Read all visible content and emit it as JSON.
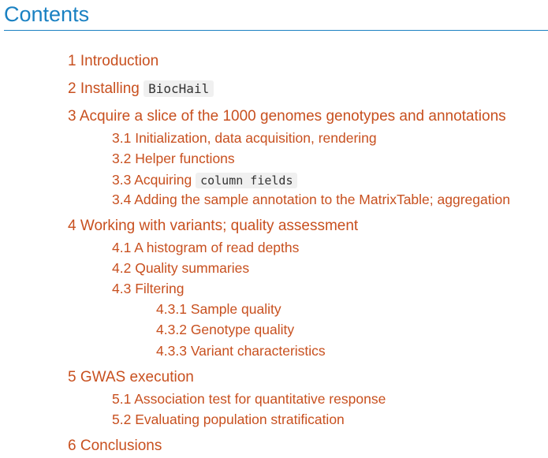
{
  "toc": {
    "title": "Contents",
    "sections": [
      {
        "num": "1",
        "label": "Introduction"
      },
      {
        "num": "2",
        "label": "Installing",
        "code": "BiocHail"
      },
      {
        "num": "3",
        "label": "Acquire a slice of the 1000 genomes genotypes and annotations",
        "children": [
          {
            "num": "3.1",
            "label": "Initialization, data acquisition, rendering"
          },
          {
            "num": "3.2",
            "label": "Helper functions"
          },
          {
            "num": "3.3",
            "label": "Acquiring",
            "code": "column fields"
          },
          {
            "num": "3.4",
            "label": "Adding the sample annotation to the MatrixTable; aggregation"
          }
        ]
      },
      {
        "num": "4",
        "label": "Working with variants; quality assessment",
        "children": [
          {
            "num": "4.1",
            "label": "A histogram of read depths"
          },
          {
            "num": "4.2",
            "label": "Quality summaries"
          },
          {
            "num": "4.3",
            "label": "Filtering",
            "children": [
              {
                "num": "4.3.1",
                "label": "Sample quality"
              },
              {
                "num": "4.3.2",
                "label": "Genotype quality"
              },
              {
                "num": "4.3.3",
                "label": "Variant characteristics"
              }
            ]
          }
        ]
      },
      {
        "num": "5",
        "label": "GWAS execution",
        "children": [
          {
            "num": "5.1",
            "label": "Association test for quantitative response"
          },
          {
            "num": "5.2",
            "label": "Evaluating population stratification"
          }
        ]
      },
      {
        "num": "6",
        "label": "Conclusions"
      }
    ]
  }
}
